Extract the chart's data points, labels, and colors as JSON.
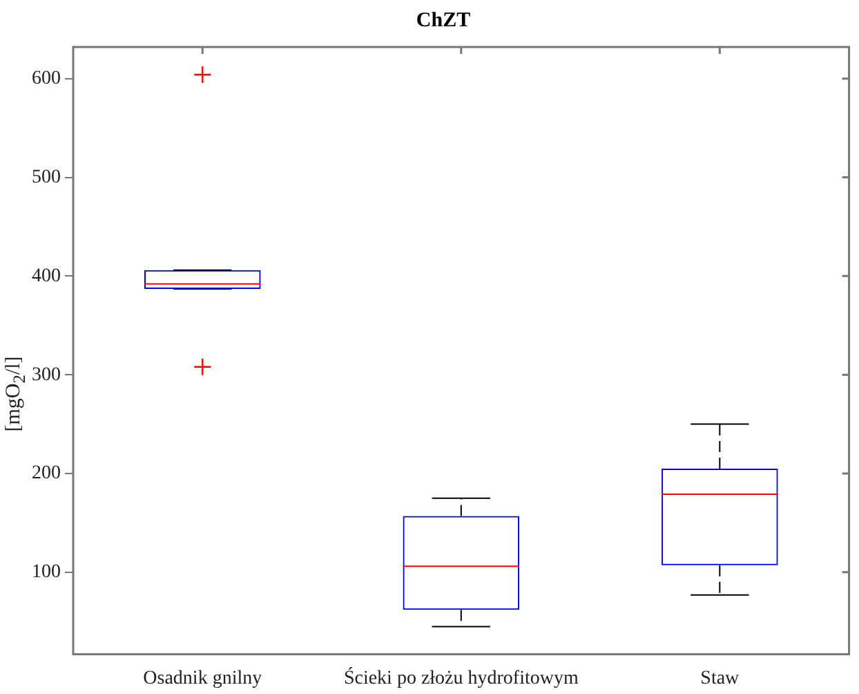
{
  "chart_data": {
    "type": "box",
    "title": "ChZT",
    "ylabel": "[mgO$_{2}$/l]",
    "categories": [
      "Osadnik gnilny",
      "Ścieki po złożu hydrofitowym",
      "Staw"
    ],
    "color": "#0000ff",
    "boxes": [
      {
        "low": 387,
        "q1": 387,
        "median": 392,
        "q3": 406,
        "high": 406,
        "outliers": [
          604,
          308
        ]
      },
      {
        "low": 45,
        "q1": 62,
        "median": 106,
        "q3": 157,
        "high": 175
      },
      {
        "low": 77,
        "q1": 107,
        "median": 179,
        "q3": 205,
        "high": 250
      }
    ],
    "ylim": [
      17,
      632
    ],
    "yticks": [
      100,
      200,
      300,
      400,
      500,
      600
    ],
    "grid": false,
    "legend": false
  }
}
